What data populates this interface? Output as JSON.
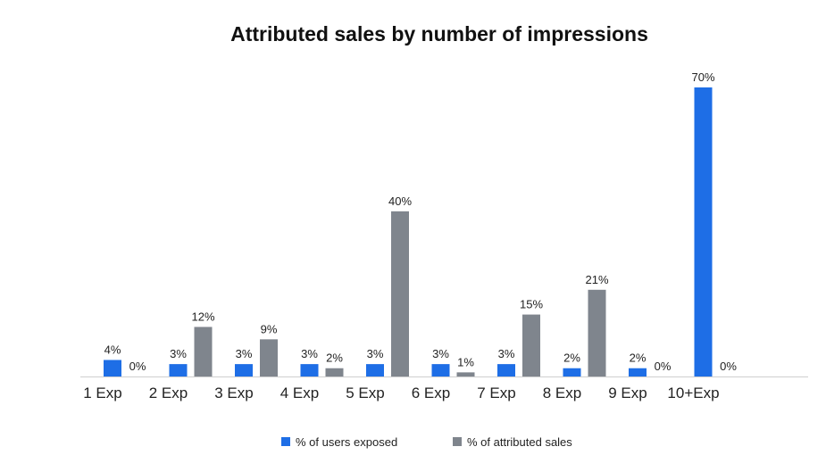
{
  "chart_data": {
    "type": "bar",
    "title": "Attributed sales by number of impressions",
    "xlabel": "",
    "ylabel": "",
    "categories": [
      "1 Exp",
      "2 Exp",
      "3 Exp",
      "4 Exp",
      "5 Exp",
      "6 Exp",
      "7 Exp",
      "8 Exp",
      "9 Exp",
      "10+Exp"
    ],
    "series": [
      {
        "name": "% of users exposed",
        "color": "#1e6ee6",
        "values": [
          4,
          3,
          3,
          3,
          3,
          3,
          3,
          2,
          2,
          70
        ],
        "labels": [
          "4%",
          "3%",
          "3%",
          "3%",
          "3%",
          "3%",
          "3%",
          "2%",
          "2%",
          "70%"
        ]
      },
      {
        "name": "% of attributed sales",
        "color": "#7f858d",
        "values": [
          0,
          12,
          9,
          2,
          40,
          1,
          15,
          21,
          0,
          0
        ],
        "labels": [
          "0%",
          "12%",
          "9%",
          "2%",
          "40%",
          "1%",
          "15%",
          "21%",
          "0%",
          "0%"
        ]
      }
    ],
    "ylim": [
      0,
      70
    ],
    "grid": false,
    "legend_position": "bottom"
  }
}
